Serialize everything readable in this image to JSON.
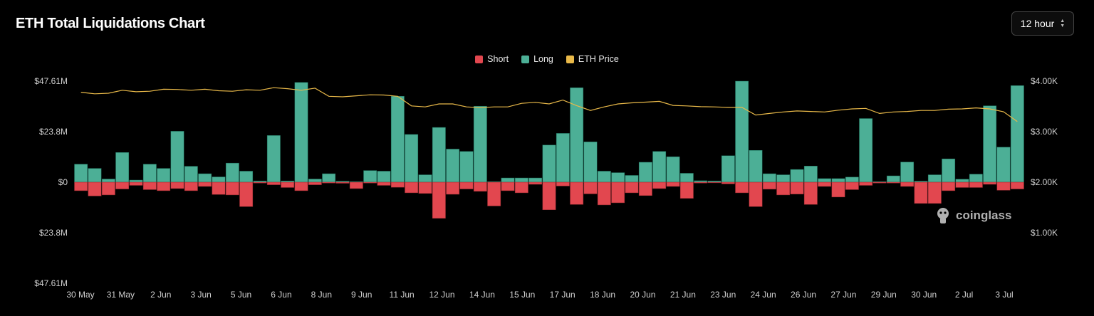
{
  "header": {
    "title": "ETH Total Liquidations Chart"
  },
  "interval_select": {
    "value": "12 hour",
    "icon": "chevron-up-down-icon"
  },
  "watermark": {
    "text": "coinglass",
    "icon": "coinglass-logo-icon"
  },
  "colors": {
    "short": "#e2474f",
    "long": "#4caf96",
    "price": "#e9b949",
    "background": "#000000"
  },
  "chart_data": {
    "type": "bar",
    "title": "ETH Total Liquidations Chart",
    "legend": {
      "placement": "top-center",
      "entries": [
        "Short",
        "Long",
        "ETH Price"
      ]
    },
    "y_left": {
      "range": [
        -47.61,
        47.61
      ],
      "unit": "M USD",
      "tick_values": [
        47.61,
        23.8,
        0,
        -23.8,
        -47.61
      ],
      "tick_labels": [
        "$47.61M",
        "$23.8M",
        "$0",
        "$23.8M",
        "$47.61M"
      ]
    },
    "y_right": {
      "range": [
        0,
        4000
      ],
      "unit": "USD",
      "tick_values": [
        4000,
        3000,
        2000,
        1000
      ],
      "tick_labels": [
        "$4.00K",
        "$3.00K",
        "$2.00K",
        "$1.00K"
      ]
    },
    "x_tick_labels": [
      "30 May",
      "31 May",
      "2 Jun",
      "3 Jun",
      "5 Jun",
      "6 Jun",
      "8 Jun",
      "9 Jun",
      "11 Jun",
      "12 Jun",
      "14 Jun",
      "15 Jun",
      "17 Jun",
      "18 Jun",
      "20 Jun",
      "21 Jun",
      "23 Jun",
      "24 Jun",
      "26 Jun",
      "27 Jun",
      "29 Jun",
      "30 Jun",
      "2 Jul",
      "3 Jul"
    ],
    "grid": false,
    "series": [
      {
        "name": "Long",
        "values": [
          8.5,
          6.5,
          1.5,
          14,
          1,
          8.5,
          6.5,
          24,
          7.5,
          4,
          2.5,
          9,
          5.2,
          0.6,
          22,
          0.6,
          47,
          1.5,
          4,
          0.5,
          0.3,
          5.5,
          5.2,
          40.5,
          22.5,
          3.5,
          25.8,
          15.6,
          14.5,
          35.8,
          0.3,
          2,
          2,
          2,
          17.5,
          23,
          44.5,
          19,
          5.2,
          4.5,
          3.2,
          9.4,
          14.5,
          12,
          4.2,
          0.7,
          0.6,
          12.5,
          47.6,
          15,
          4,
          3.5,
          6,
          7.6,
          1.7,
          1.7,
          2.4,
          30,
          0.3,
          3,
          9.5,
          0.5,
          3.5,
          11,
          1.4,
          3.8,
          36,
          16.5,
          45.5
        ]
      },
      {
        "name": "Short",
        "values": [
          -4,
          -6.5,
          -6,
          -3.2,
          -1.5,
          -3.5,
          -4,
          -3,
          -4,
          -2,
          -5.8,
          -6,
          -11.5,
          -0.4,
          -1.2,
          -2.5,
          -4,
          -1.2,
          -0.4,
          -0.5,
          -3,
          -0.4,
          -1.5,
          -2.4,
          -5,
          -5.3,
          -17,
          -5.7,
          -3.2,
          -4.3,
          -11.2,
          -4,
          -5,
          -1,
          -13,
          -1.8,
          -10.5,
          -5.5,
          -10.7,
          -9.7,
          -5,
          -6.3,
          -3,
          -2,
          -7.6,
          -0.4,
          -0.3,
          -0.8,
          -5,
          -11.5,
          -3.3,
          -6,
          -5.6,
          -10.5,
          -2,
          -7,
          -3.5,
          -1.5,
          -0.4,
          -0.4,
          -2,
          -10,
          -10,
          -4,
          -2.5,
          -2.5,
          -1,
          -3.8,
          -3.2
        ]
      },
      {
        "name": "ETH Price",
        "values": [
          3780,
          3750,
          3760,
          3820,
          3790,
          3800,
          3840,
          3835,
          3820,
          3840,
          3810,
          3800,
          3830,
          3820,
          3870,
          3850,
          3820,
          3860,
          3700,
          3690,
          3710,
          3730,
          3725,
          3700,
          3510,
          3490,
          3550,
          3550,
          3490,
          3475,
          3490,
          3490,
          3560,
          3580,
          3550,
          3625,
          3515,
          3420,
          3490,
          3550,
          3570,
          3585,
          3600,
          3520,
          3510,
          3495,
          3490,
          3480,
          3480,
          3330,
          3360,
          3390,
          3410,
          3400,
          3390,
          3425,
          3450,
          3460,
          3360,
          3390,
          3400,
          3420,
          3420,
          3445,
          3450,
          3470,
          3450,
          3395,
          3200
        ]
      }
    ]
  }
}
